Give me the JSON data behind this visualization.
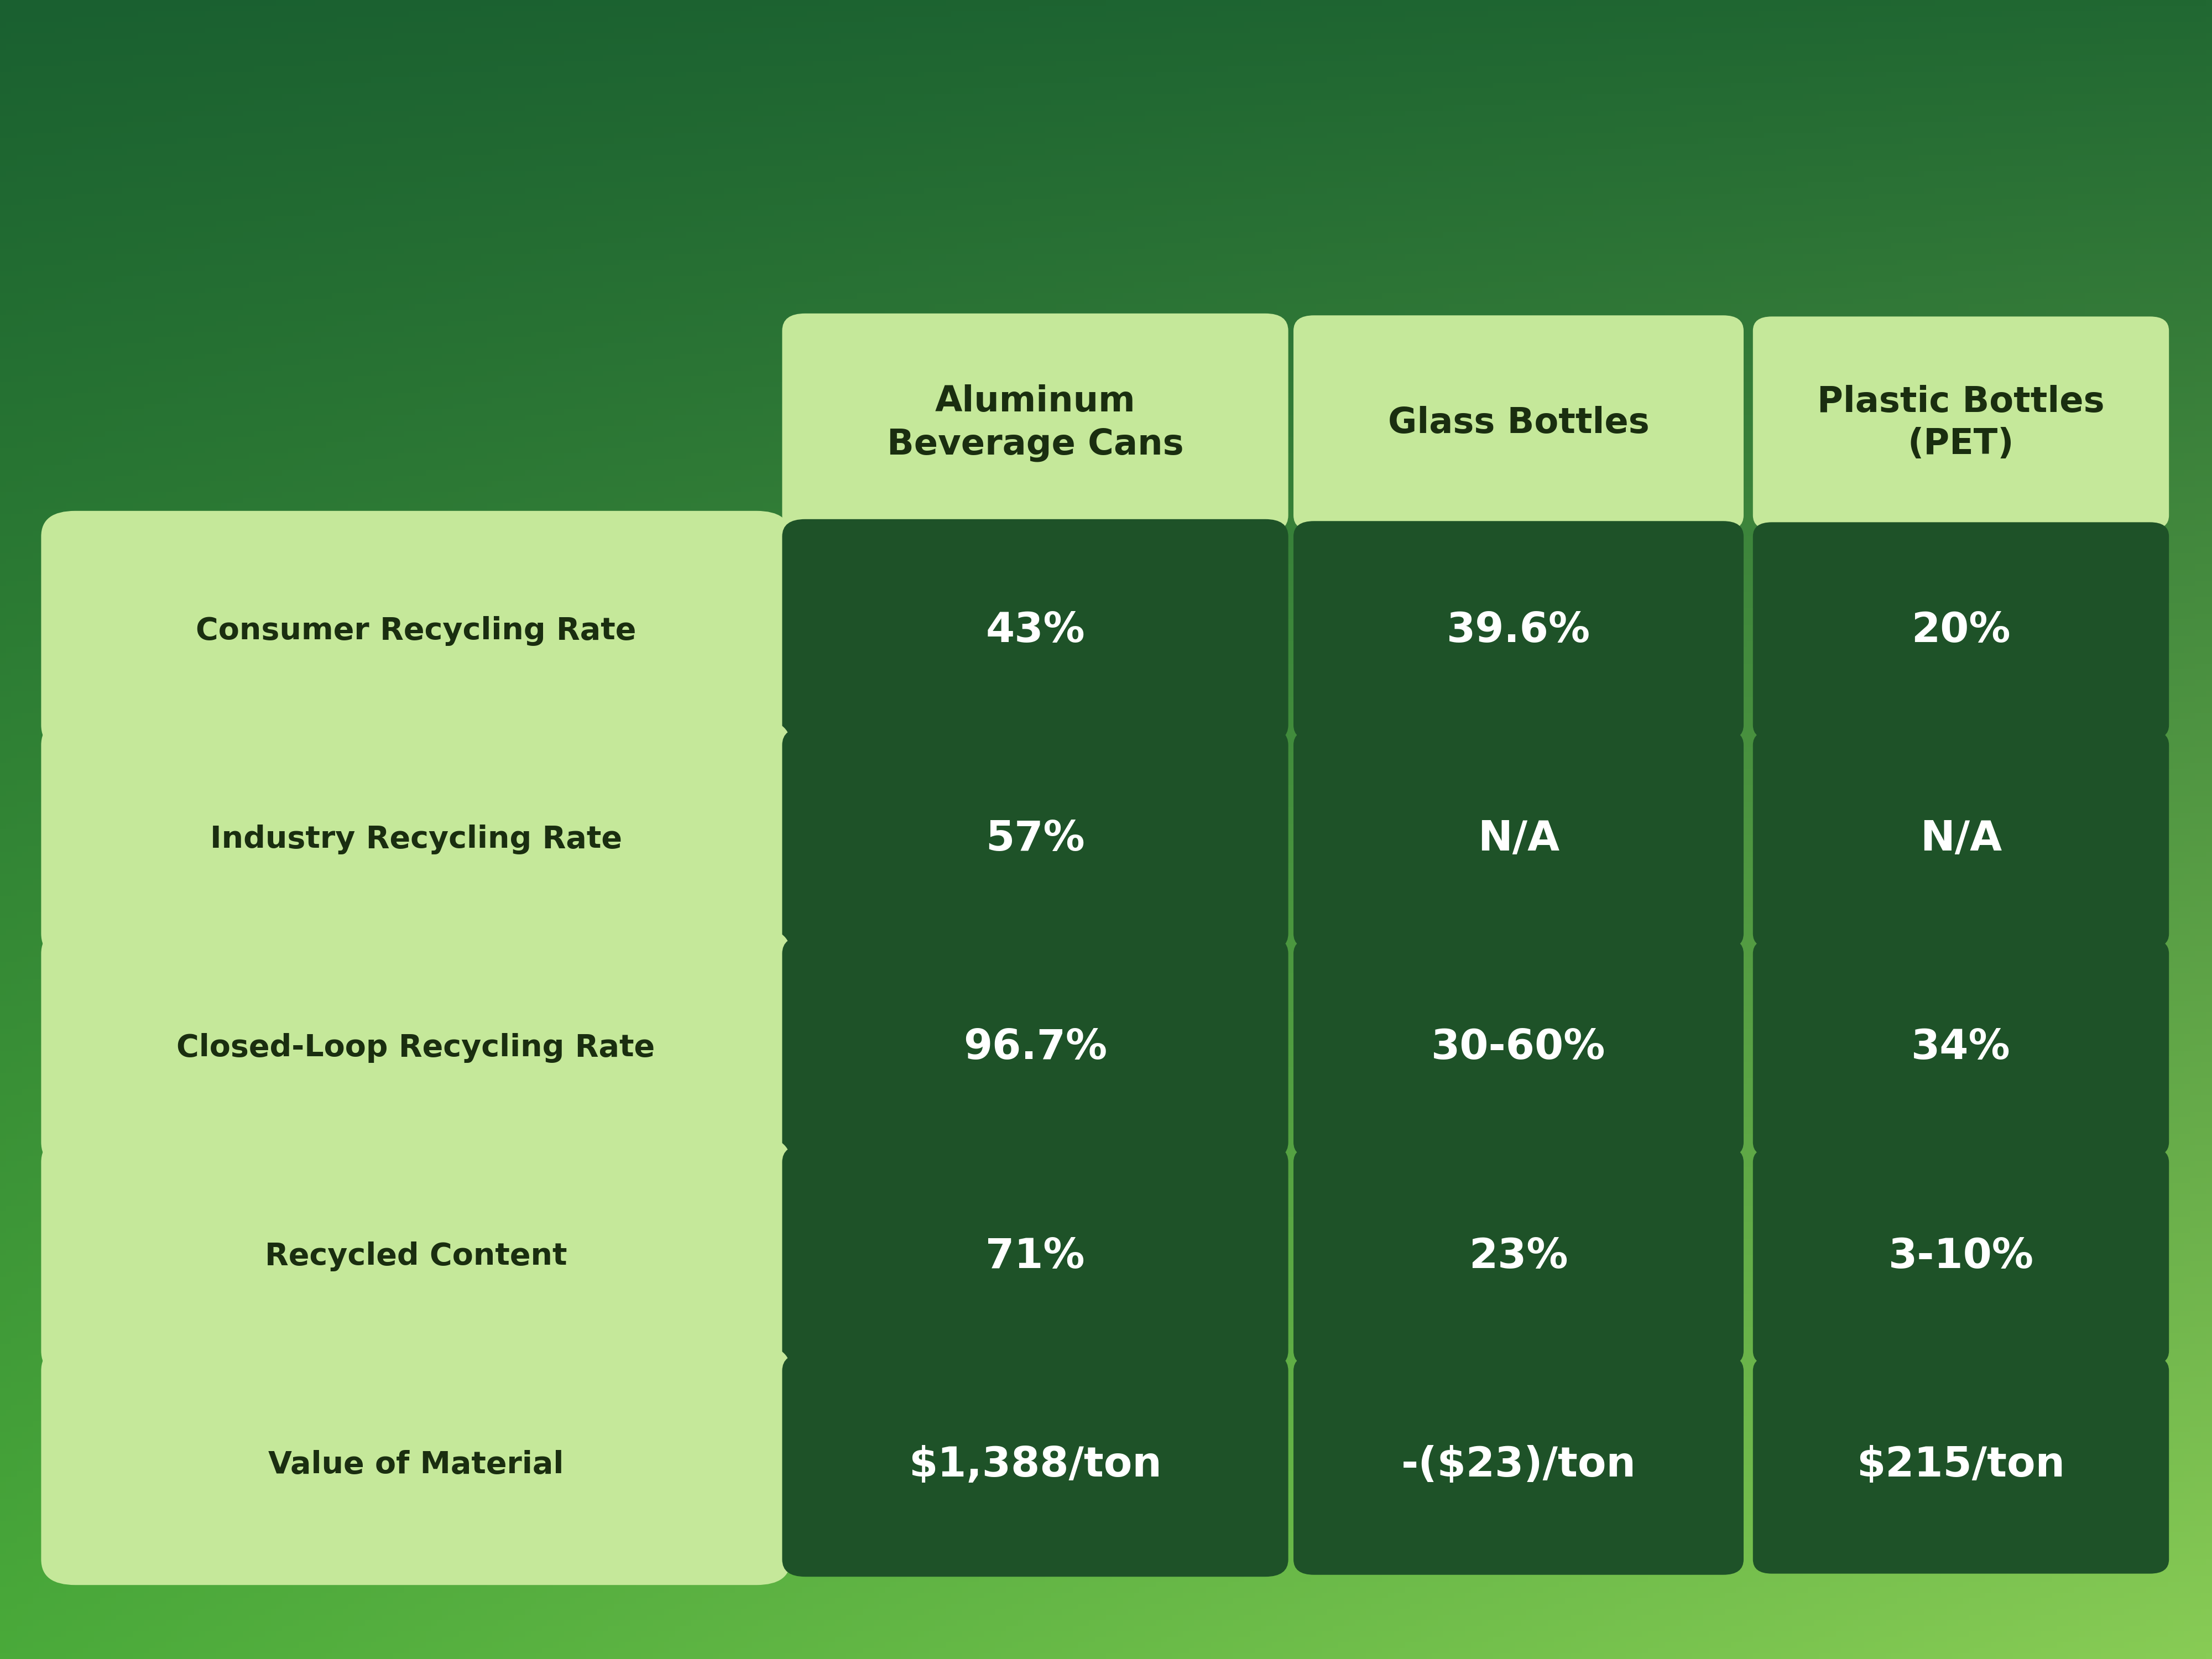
{
  "bg_color_tl": "#1a6030",
  "bg_color_tr": "#216832",
  "bg_color_bl": "#4aaa3a",
  "bg_color_br": "#88cc55",
  "header_bg_color": "#c5e89a",
  "row_label_bg_color": "#c5e89a",
  "data_cell_bg_color": "#1e5228",
  "header_text_color": "#1a2e10",
  "row_label_text_color": "#1a2e10",
  "data_cell_text_color": "#ffffff",
  "columns": [
    "Aluminum\nBeverage Cans",
    "Glass Bottles",
    "Plastic Bottles\n(PET)"
  ],
  "rows": [
    "Consumer Recycling Rate",
    "Industry Recycling Rate",
    "Closed-Loop Recycling Rate",
    "Recycled Content",
    "Value of Material"
  ],
  "data": [
    [
      "43%",
      "39.6%",
      "20%"
    ],
    [
      "57%",
      "N/A",
      "N/A"
    ],
    [
      "96.7%",
      "30-60%",
      "34%"
    ],
    [
      "71%",
      "23%",
      "3-10%"
    ],
    [
      "$1,388/ton",
      "-($23)/ton",
      "$215/ton"
    ]
  ],
  "header_fontsize": 46,
  "row_label_fontsize": 40,
  "data_fontsize": 54,
  "figsize": [
    40,
    30
  ]
}
